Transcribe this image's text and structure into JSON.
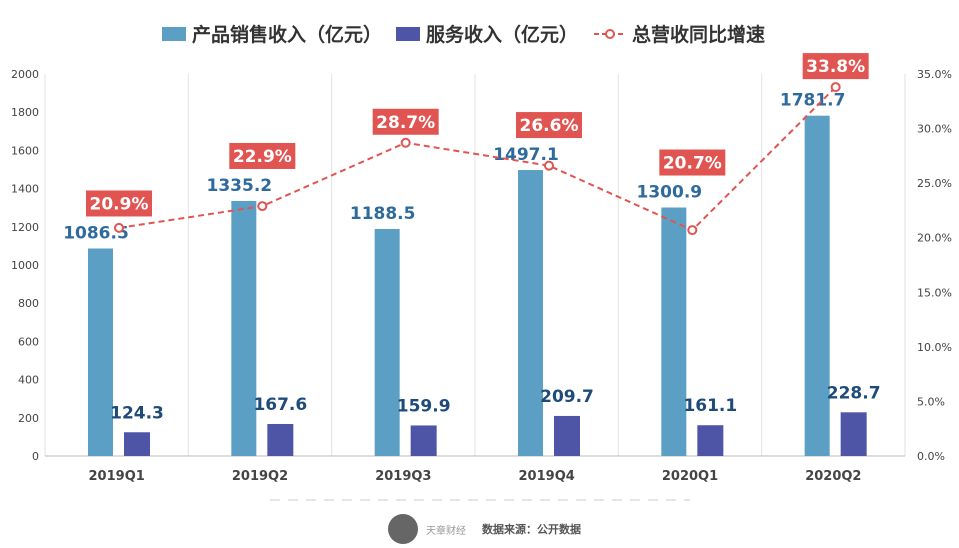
{
  "legend": {
    "product": "产品销售收入（亿元）",
    "service": "服务收入（亿元）",
    "growth": "总营收同比增速"
  },
  "footer": {
    "logo_text": "天章财经",
    "source": "数据来源：公开数据"
  },
  "colors": {
    "product": "#5b9fc4",
    "service": "#4e55a6",
    "growth": "#e05552",
    "label_product": "#2f6a9c",
    "label_service": "#1f4b7a"
  },
  "chart_data": {
    "type": "bar",
    "categories": [
      "2019Q1",
      "2019Q2",
      "2019Q3",
      "2019Q4",
      "2020Q1",
      "2020Q2"
    ],
    "series": [
      {
        "name": "产品销售收入（亿元）",
        "type": "bar",
        "axis": "left",
        "values": [
          1086.5,
          1335.2,
          1188.5,
          1497.1,
          1300.9,
          1781.7
        ]
      },
      {
        "name": "服务收入（亿元）",
        "type": "bar",
        "axis": "left",
        "values": [
          124.3,
          167.6,
          159.9,
          209.7,
          161.1,
          228.7
        ]
      },
      {
        "name": "总营收同比增速",
        "type": "line",
        "axis": "right",
        "values": [
          20.9,
          22.9,
          28.7,
          26.6,
          20.7,
          33.8
        ],
        "labels": [
          "20.9%",
          "22.9%",
          "28.7%",
          "26.6%",
          "20.7%",
          "33.8%"
        ]
      }
    ],
    "ylim": [
      0,
      2000
    ],
    "yticks": [
      0,
      200,
      400,
      600,
      800,
      1000,
      1200,
      1400,
      1600,
      1800,
      2000
    ],
    "y2lim": [
      0,
      35
    ],
    "y2ticks": [
      "0.0%",
      "5.0%",
      "10.0%",
      "15.0%",
      "20.0%",
      "25.0%",
      "30.0%",
      "35.0%"
    ],
    "grid": "vertical",
    "legend_position": "top"
  }
}
